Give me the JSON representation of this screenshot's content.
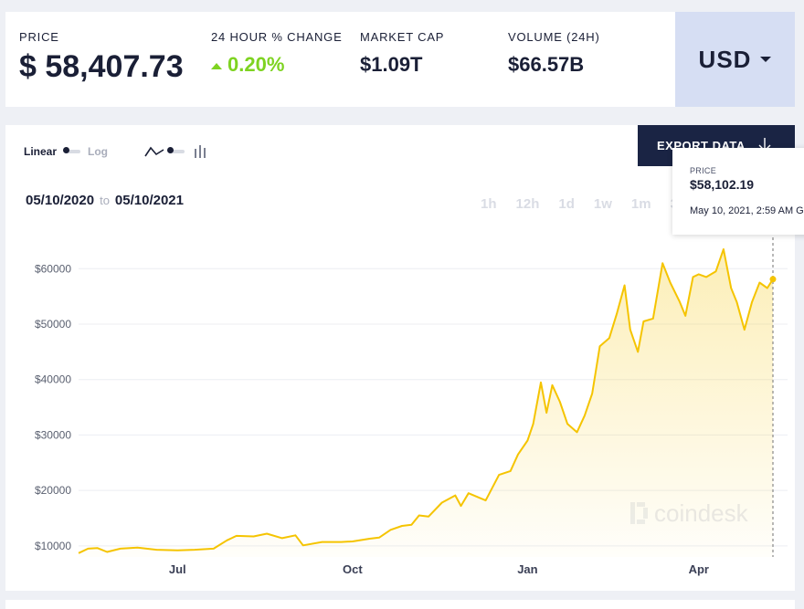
{
  "stats": {
    "price_label": "PRICE",
    "price_value": "$ 58,407.73",
    "change_label": "24 HOUR % CHANGE",
    "change_value": "0.20%",
    "mcap_label": "MARKET CAP",
    "mcap_value": "$1.09T",
    "volume_label": "VOLUME (24H)",
    "volume_value": "$66.57B"
  },
  "currency": {
    "label": "USD"
  },
  "controls": {
    "linear_label": "Linear",
    "log_label": "Log",
    "export_label": "EXPORT DATA",
    "range_start": "05/10/2020",
    "range_to": "to",
    "range_end": "05/10/2021",
    "timeframes": [
      "1h",
      "12h",
      "1d",
      "1w",
      "1m",
      "3"
    ]
  },
  "tooltip": {
    "label": "PRICE",
    "value": "$58,102.19",
    "date": "May 10, 2021, 2:59 AM G"
  },
  "watermark": "coindesk",
  "colors": {
    "line": "#f5c400",
    "change_up": "#7ed321",
    "export_bg": "#1a2444",
    "currency_bg": "#d6def3"
  },
  "chart_data": {
    "type": "area",
    "title": "",
    "xlabel": "",
    "ylabel": "",
    "ylim": [
      8000,
      64000
    ],
    "y_ticks": [
      10000,
      20000,
      30000,
      40000,
      50000,
      60000
    ],
    "y_tick_labels": [
      "$10000",
      "$20000",
      "$30000",
      "$40000",
      "$50000",
      "$60000"
    ],
    "x_ticks": [
      "2020-07-01",
      "2020-10-01",
      "2021-01-01",
      "2021-04-01"
    ],
    "x_tick_labels": [
      "Jul",
      "Oct",
      "Jan",
      "Apr"
    ],
    "xlim": [
      "2020-05-10",
      "2021-05-10"
    ],
    "grid": true,
    "series": [
      {
        "x": [
          "2020-05-10",
          "2020-05-15",
          "2020-05-20",
          "2020-05-25",
          "2020-06-01",
          "2020-06-10",
          "2020-06-20",
          "2020-07-01",
          "2020-07-10",
          "2020-07-20",
          "2020-07-27",
          "2020-08-01",
          "2020-08-10",
          "2020-08-17",
          "2020-08-25",
          "2020-09-01",
          "2020-09-05",
          "2020-09-15",
          "2020-09-25",
          "2020-10-01",
          "2020-10-10",
          "2020-10-15",
          "2020-10-21",
          "2020-10-27",
          "2020-11-01",
          "2020-11-05",
          "2020-11-10",
          "2020-11-17",
          "2020-11-24",
          "2020-11-27",
          "2020-12-01",
          "2020-12-10",
          "2020-12-17",
          "2020-12-23",
          "2020-12-27",
          "2021-01-01",
          "2021-01-04",
          "2021-01-08",
          "2021-01-11",
          "2021-01-14",
          "2021-01-18",
          "2021-01-22",
          "2021-01-27",
          "2021-01-31",
          "2021-02-04",
          "2021-02-08",
          "2021-02-13",
          "2021-02-17",
          "2021-02-21",
          "2021-02-24",
          "2021-02-28",
          "2021-03-03",
          "2021-03-08",
          "2021-03-13",
          "2021-03-17",
          "2021-03-22",
          "2021-03-25",
          "2021-03-29",
          "2021-04-01",
          "2021-04-05",
          "2021-04-10",
          "2021-04-14",
          "2021-04-18",
          "2021-04-21",
          "2021-04-25",
          "2021-04-29",
          "2021-05-03",
          "2021-05-07",
          "2021-05-10"
        ],
        "y": [
          8700,
          9500,
          9600,
          8900,
          9500,
          9700,
          9300,
          9200,
          9300,
          9500,
          11000,
          11800,
          11700,
          12200,
          11400,
          11900,
          10100,
          10700,
          10700,
          10800,
          11300,
          11500,
          12900,
          13600,
          13800,
          15500,
          15300,
          17800,
          19100,
          17200,
          19500,
          18200,
          22800,
          23500,
          26500,
          29000,
          32000,
          39500,
          34000,
          39000,
          36000,
          32000,
          30500,
          33500,
          37500,
          46000,
          47500,
          52000,
          57000,
          49000,
          45000,
          50500,
          51000,
          61000,
          57500,
          54000,
          51500,
          58500,
          59000,
          58500,
          59500,
          63500,
          56500,
          54000,
          49000,
          54000,
          57500,
          56500,
          58102
        ]
      }
    ]
  }
}
